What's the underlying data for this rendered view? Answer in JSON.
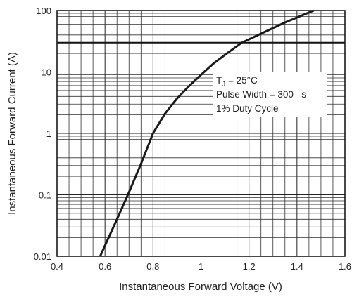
{
  "chart_data": {
    "type": "line",
    "title": "",
    "xlabel": "Instantaneous Forward Voltage (V)",
    "ylabel": "Instantaneous Forward Current (A)",
    "xlim": [
      0.4,
      1.6
    ],
    "ylim": [
      0.01,
      100
    ],
    "yscale": "log",
    "grid": true,
    "x_ticks": [
      "0.4",
      "0.6",
      "0.8",
      "1",
      "1.2",
      "1.4",
      "1.6"
    ],
    "x_tick_values": [
      0.4,
      0.6,
      0.8,
      1.0,
      1.2,
      1.4,
      1.6
    ],
    "y_ticks": [
      "0.01",
      "0.1",
      "1",
      "10",
      "100"
    ],
    "y_tick_values": [
      0.01,
      0.1,
      1,
      10,
      100
    ],
    "annotations": [
      {
        "main": "T",
        "sub": "J",
        "rest": " = 25°C"
      },
      {
        "text": "Pulse Width = 300   s"
      },
      {
        "text": "1% Duty Cycle"
      }
    ],
    "series": [
      {
        "color": "#1a1a1a",
        "x": [
          0.58,
          0.6,
          0.65,
          0.7,
          0.75,
          0.8,
          0.85,
          0.9,
          0.95,
          1.0,
          1.05,
          1.1,
          1.17,
          1.25,
          1.35,
          1.47
        ],
        "y": [
          0.01,
          0.015,
          0.04,
          0.11,
          0.32,
          1.0,
          2.1,
          3.7,
          5.9,
          9.0,
          13.5,
          19.0,
          30.0,
          42.0,
          64.0,
          100.0
        ]
      }
    ],
    "reference_lines": [
      {
        "axis": "y",
        "value": 30
      }
    ]
  }
}
